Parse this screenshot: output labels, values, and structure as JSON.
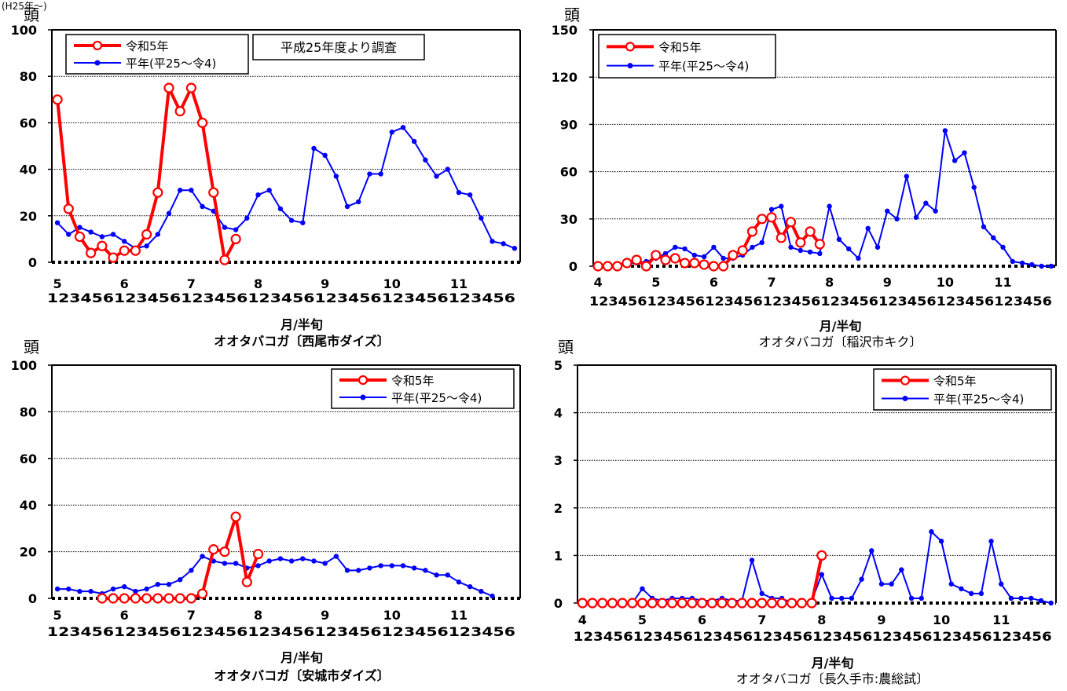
{
  "page": {
    "caption": "(H25年〜)"
  },
  "colors": {
    "current": "#ff0000",
    "normal": "#0000ff",
    "grid": "#000000"
  },
  "charts": [
    {
      "id": "nishio",
      "unit": "頭",
      "xlabel": "月/半旬",
      "title": "オオタバコガ〔西尾市ダイズ〕",
      "note": "平成25年度より調査",
      "ymax": 100,
      "yticks": [
        0,
        20,
        40,
        60,
        80,
        100
      ],
      "start_month": 5,
      "months": [
        "5",
        "6",
        "7",
        "8",
        "9",
        "10",
        "11"
      ],
      "sub_digits": "123456123456123456123456123456123456123456",
      "legend": {
        "current": "令和5年",
        "normal": "平年(平25〜令4)"
      },
      "series": {
        "current": [
          70,
          23,
          11,
          4,
          7,
          2,
          5,
          5,
          12,
          30,
          75,
          65,
          75,
          60,
          30,
          1,
          10
        ],
        "normal": [
          17,
          12,
          15,
          13,
          11,
          12,
          9,
          6,
          7,
          12,
          21,
          31,
          31,
          24,
          22,
          15,
          14,
          19,
          29,
          31,
          23,
          18,
          17,
          49,
          46,
          37,
          24,
          26,
          38,
          38,
          56,
          58,
          52,
          44,
          37,
          40,
          30,
          29,
          19,
          9,
          8,
          6
        ]
      }
    },
    {
      "id": "inazawa",
      "unit": "頭",
      "xlabel": "月/半旬",
      "title": "オオタバコガ〔稲沢市キク〕",
      "note": "",
      "ymax": 150,
      "yticks": [
        0,
        30,
        60,
        90,
        120,
        150
      ],
      "start_month": 4,
      "months": [
        "4",
        "5",
        "6",
        "7",
        "8",
        "9",
        "10",
        "11"
      ],
      "sub_digits": "123456123456123456123456123456123456123456123456",
      "legend": {
        "current": "令和5年",
        "normal": "平年(平25〜令4)"
      },
      "series": {
        "current": [
          0,
          0,
          0,
          2,
          4,
          0,
          7,
          4,
          5,
          2,
          2,
          1,
          0,
          0,
          7,
          10,
          22,
          30,
          31,
          18,
          28,
          15,
          22,
          14
        ],
        "normal": [
          0,
          1,
          1,
          2,
          2,
          3,
          5,
          8,
          12,
          11,
          7,
          6,
          12,
          5,
          5,
          7,
          12,
          15,
          36,
          38,
          12,
          10,
          9,
          8,
          38,
          17,
          11,
          5,
          24,
          12,
          35,
          30,
          57,
          31,
          40,
          35,
          86,
          67,
          72,
          50,
          25,
          18,
          12,
          3,
          2,
          1,
          0,
          0
        ]
      }
    },
    {
      "id": "anjo",
      "unit": "頭",
      "xlabel": "月/半旬",
      "title": "オオタバコガ〔安城市ダイズ〕",
      "note": "",
      "ymax": 100,
      "yticks": [
        0,
        20,
        40,
        60,
        80,
        100
      ],
      "start_month": 5,
      "months": [
        "5",
        "6",
        "7",
        "8",
        "9",
        "10",
        "11"
      ],
      "sub_digits": "123456123456123456123456123456123456123456",
      "legend": {
        "current": "令和5年",
        "normal": "平年(平25〜令4)"
      },
      "series": {
        "current": [
          null,
          null,
          null,
          null,
          0,
          0,
          0,
          0,
          0,
          0,
          0,
          0,
          0,
          2,
          21,
          20,
          35,
          7,
          19
        ],
        "normal": [
          4,
          4,
          3,
          3,
          2,
          4,
          5,
          3,
          4,
          6,
          6,
          8,
          12,
          18,
          16,
          15,
          15,
          13,
          14,
          16,
          17,
          16,
          17,
          16,
          15,
          18,
          12,
          12,
          13,
          14,
          14,
          14,
          13,
          12,
          10,
          10,
          7,
          5,
          3,
          1
        ]
      }
    },
    {
      "id": "nagakute",
      "unit": "頭",
      "xlabel": "月/半旬",
      "title": "オオタバコガ〔長久手市:農総試〕",
      "note": "",
      "ymax": 5,
      "yticks": [
        0,
        1,
        2,
        3,
        4,
        5
      ],
      "start_month": 4,
      "months": [
        "4",
        "5",
        "6",
        "7",
        "8",
        "9",
        "10",
        "11"
      ],
      "sub_digits": "123456123456123456123456123456123456123456123456",
      "legend": {
        "current": "令和5年",
        "normal": "平年(平25〜令4)"
      },
      "series": {
        "current": [
          0,
          0,
          0,
          0,
          0,
          0,
          0,
          0,
          0,
          0,
          0,
          0,
          0,
          0,
          0,
          0,
          0,
          0,
          0,
          0,
          0,
          0,
          0,
          0,
          1
        ],
        "normal": [
          0,
          0,
          0,
          0,
          0,
          0,
          0.3,
          0.1,
          0.05,
          0.1,
          0.1,
          0.1,
          0.05,
          0.05,
          0.1,
          0.05,
          0.05,
          0.9,
          0.2,
          0.1,
          0.1,
          0,
          0,
          0.05,
          0.6,
          0.1,
          0.1,
          0.1,
          0.5,
          1.1,
          0.4,
          0.4,
          0.7,
          0.1,
          0.1,
          1.5,
          1.3,
          0.4,
          0.3,
          0.2,
          0.2,
          1.3,
          0.4,
          0.1,
          0.1,
          0.1,
          0.05,
          0
        ]
      }
    }
  ],
  "chart_data": [
    {
      "type": "line",
      "title": "オオタバコガ〔西尾市ダイズ〕",
      "xlabel": "月/半旬",
      "ylabel": "頭",
      "ylim": [
        0,
        100
      ],
      "x": "5月1半旬〜11月6半旬",
      "series": [
        {
          "name": "令和5年",
          "values": [
            70,
            23,
            11,
            4,
            7,
            2,
            5,
            5,
            12,
            30,
            75,
            65,
            75,
            60,
            30,
            1,
            10
          ]
        },
        {
          "name": "平年(平25〜令4)",
          "values": [
            17,
            12,
            15,
            13,
            11,
            12,
            9,
            6,
            7,
            12,
            21,
            31,
            31,
            24,
            22,
            15,
            14,
            19,
            29,
            31,
            23,
            18,
            17,
            49,
            46,
            37,
            24,
            26,
            38,
            38,
            56,
            58,
            52,
            44,
            37,
            40,
            30,
            29,
            19,
            9,
            8,
            6
          ]
        }
      ]
    },
    {
      "type": "line",
      "title": "オオタバコガ〔稲沢市キク〕",
      "xlabel": "月/半旬",
      "ylabel": "頭",
      "ylim": [
        0,
        150
      ],
      "x": "4月1半旬〜11月6半旬",
      "series": [
        {
          "name": "令和5年",
          "values": [
            0,
            0,
            0,
            2,
            4,
            0,
            7,
            4,
            5,
            2,
            2,
            1,
            0,
            0,
            7,
            10,
            22,
            30,
            31,
            18,
            28,
            15,
            22,
            14
          ]
        },
        {
          "name": "平年(平25〜令4)",
          "values": [
            0,
            1,
            1,
            2,
            2,
            3,
            5,
            8,
            12,
            11,
            7,
            6,
            12,
            5,
            5,
            7,
            12,
            15,
            36,
            38,
            12,
            10,
            9,
            8,
            38,
            17,
            11,
            5,
            24,
            12,
            35,
            30,
            57,
            31,
            40,
            35,
            86,
            67,
            72,
            50,
            25,
            18,
            12,
            3,
            2,
            1,
            0,
            0
          ]
        }
      ]
    },
    {
      "type": "line",
      "title": "オオタバコガ〔安城市ダイズ〕",
      "xlabel": "月/半旬",
      "ylabel": "頭",
      "ylim": [
        0,
        100
      ],
      "x": "5月1半旬〜11月6半旬",
      "series": [
        {
          "name": "令和5年",
          "values": [
            null,
            null,
            null,
            null,
            0,
            0,
            0,
            0,
            0,
            0,
            0,
            0,
            0,
            2,
            21,
            20,
            35,
            7,
            19
          ]
        },
        {
          "name": "平年(平25〜令4)",
          "values": [
            4,
            4,
            3,
            3,
            2,
            4,
            5,
            3,
            4,
            6,
            6,
            8,
            12,
            18,
            16,
            15,
            15,
            13,
            14,
            16,
            17,
            16,
            17,
            16,
            15,
            18,
            12,
            12,
            13,
            14,
            14,
            14,
            13,
            12,
            10,
            10,
            7,
            5,
            3,
            1
          ]
        }
      ]
    },
    {
      "type": "line",
      "title": "オオタバコガ〔長久手市:農総試〕",
      "xlabel": "月/半旬",
      "ylabel": "頭",
      "ylim": [
        0,
        5
      ],
      "x": "4月1半旬〜11月6半旬",
      "series": [
        {
          "name": "令和5年",
          "values": [
            0,
            0,
            0,
            0,
            0,
            0,
            0,
            0,
            0,
            0,
            0,
            0,
            0,
            0,
            0,
            0,
            0,
            0,
            0,
            0,
            0,
            0,
            0,
            0,
            1
          ]
        },
        {
          "name": "平年(平25〜令4)",
          "values": [
            0,
            0,
            0,
            0,
            0,
            0,
            0.3,
            0.1,
            0.05,
            0.1,
            0.1,
            0.1,
            0.05,
            0.05,
            0.1,
            0.05,
            0.05,
            0.9,
            0.2,
            0.1,
            0.1,
            0,
            0,
            0.05,
            0.6,
            0.1,
            0.1,
            0.1,
            0.5,
            1.1,
            0.4,
            0.4,
            0.7,
            0.1,
            0.1,
            1.5,
            1.3,
            0.4,
            0.3,
            0.2,
            0.2,
            1.3,
            0.4,
            0.1,
            0.1,
            0.1,
            0.05,
            0
          ]
        }
      ]
    }
  ]
}
